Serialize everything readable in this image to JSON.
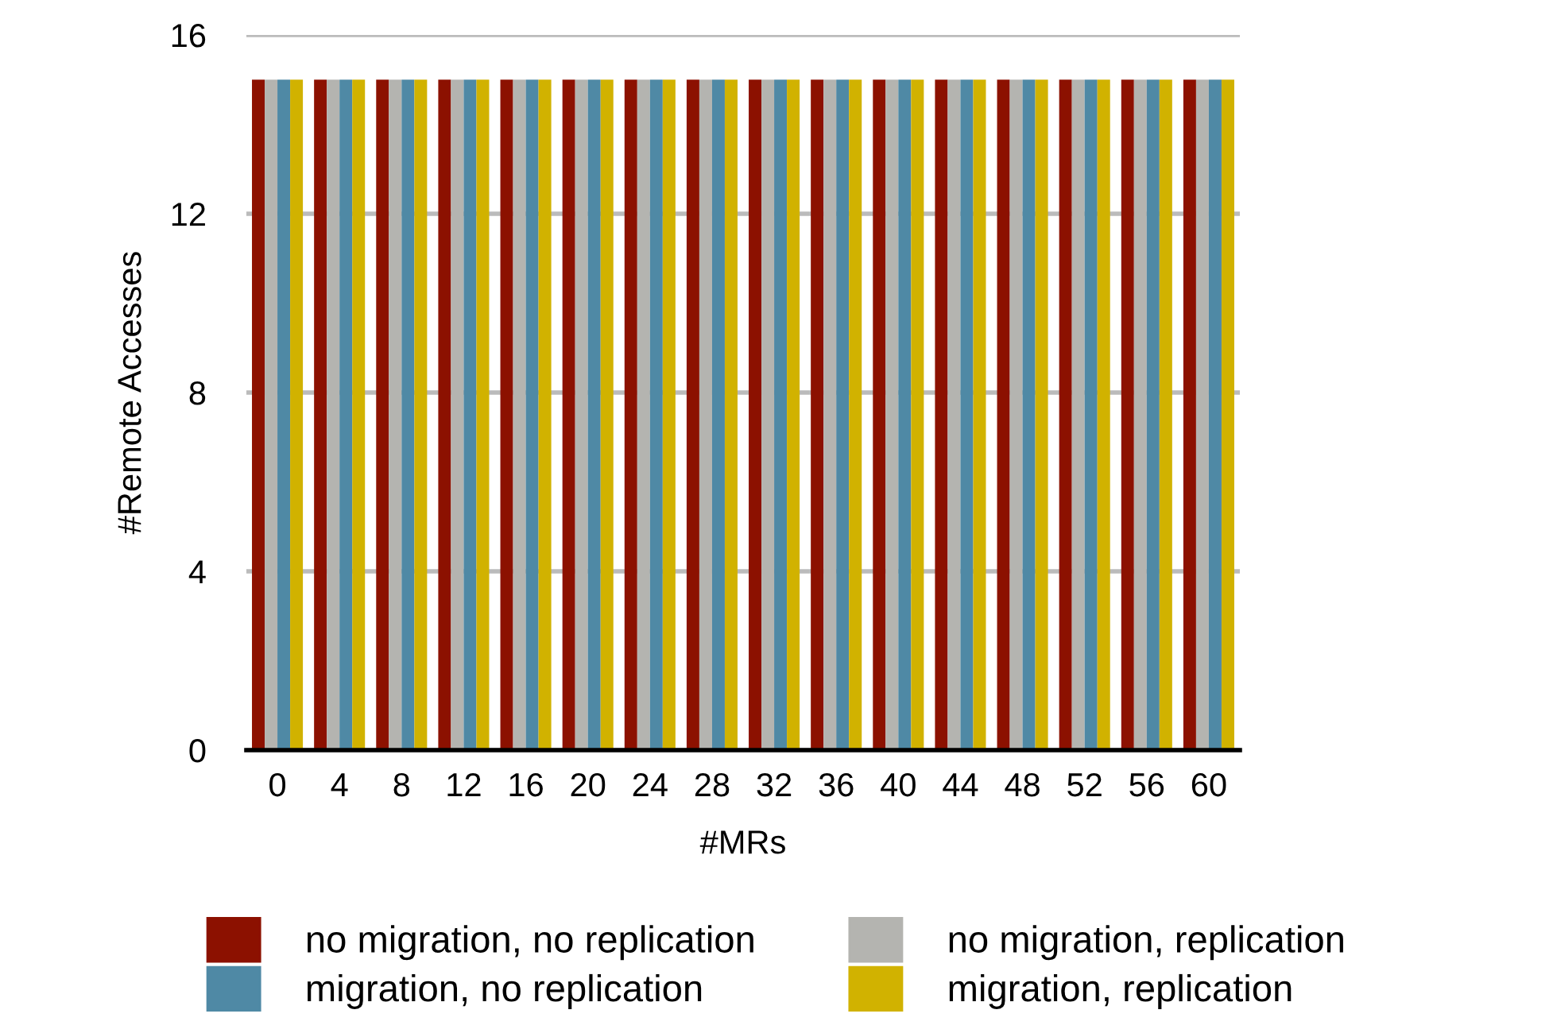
{
  "chart_data": {
    "type": "bar",
    "xlabel": "#MRs",
    "ylabel": "#Remote Accesses",
    "categories": [
      "0",
      "4",
      "8",
      "12",
      "16",
      "20",
      "24",
      "28",
      "32",
      "36",
      "40",
      "44",
      "48",
      "52",
      "56",
      "60"
    ],
    "series": [
      {
        "name": "no migration, no replication",
        "color": "#8c1100",
        "values": [
          15,
          15,
          15,
          15,
          15,
          15,
          15,
          15,
          15,
          15,
          15,
          15,
          15,
          15,
          15,
          15
        ]
      },
      {
        "name": "no migration, replication",
        "color": "#b4b4b0",
        "values": [
          15,
          15,
          15,
          15,
          15,
          15,
          15,
          15,
          15,
          15,
          15,
          15,
          15,
          15,
          15,
          15
        ]
      },
      {
        "name": "migration, no replication",
        "color": "#4f89a5",
        "values": [
          15,
          15,
          15,
          15,
          15,
          15,
          15,
          15,
          15,
          15,
          15,
          15,
          15,
          15,
          15,
          15
        ]
      },
      {
        "name": "migration, replication",
        "color": "#d1b200",
        "values": [
          15,
          15,
          15,
          15,
          15,
          15,
          15,
          15,
          15,
          15,
          15,
          15,
          15,
          15,
          15,
          15
        ]
      }
    ],
    "ylim": [
      0,
      16
    ],
    "yticks": [
      0,
      4,
      8,
      12,
      16
    ],
    "grid": "y",
    "legend": "bottom"
  }
}
